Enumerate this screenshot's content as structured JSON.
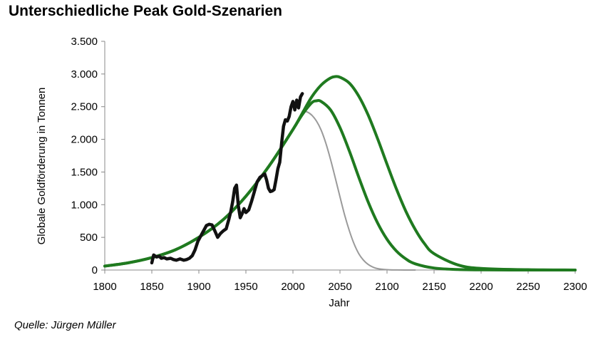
{
  "title": "Unterschiedliche Peak Gold-Szenarien",
  "source": "Quelle: Jürgen Müller",
  "chart_data": {
    "type": "line",
    "title": "Unterschiedliche Peak Gold-Szenarien",
    "xlabel": "Jahr",
    "ylabel": "Globale Goldförderung in Tonnen",
    "xlim": [
      1800,
      2300
    ],
    "ylim": [
      0,
      3500
    ],
    "x_ticks": [
      1800,
      1850,
      1900,
      1950,
      2000,
      2050,
      2100,
      2150,
      2200,
      2250,
      2300
    ],
    "x_tick_labels": [
      "1800",
      "1850",
      "1900",
      "1950",
      "2000",
      "2050",
      "2100",
      "2150",
      "2200",
      "2250",
      "2300"
    ],
    "y_ticks": [
      0,
      500,
      1000,
      1500,
      2000,
      2500,
      3000,
      3500
    ],
    "y_tick_labels": [
      "0",
      "500",
      "1.000",
      "1.500",
      "2.000",
      "2.500",
      "3.000",
      "3.500"
    ],
    "grid": false,
    "legend": "none",
    "series": [
      {
        "color": "#1f7a1f",
        "style": "thick",
        "x": [
          1800,
          1825,
          1850,
          1875,
          1900,
          1925,
          1950,
          1975,
          2000,
          2010,
          2020,
          2030,
          2040,
          2045,
          2050,
          2060,
          2070,
          2080,
          2090,
          2100,
          2110,
          2120,
          2130,
          2140,
          2150,
          2175,
          2200,
          2250,
          2300
        ],
        "y": [
          60,
          110,
          190,
          310,
          500,
          760,
          1130,
          1600,
          2150,
          2400,
          2650,
          2830,
          2940,
          2960,
          2950,
          2860,
          2660,
          2370,
          2010,
          1620,
          1240,
          900,
          620,
          400,
          250,
          80,
          25,
          5,
          0
        ]
      },
      {
        "color": "#1f7a1f",
        "style": "thick",
        "x": [
          1800,
          1825,
          1850,
          1875,
          1900,
          1925,
          1950,
          1975,
          2000,
          2010,
          2020,
          2025,
          2030,
          2040,
          2050,
          2060,
          2070,
          2080,
          2090,
          2100,
          2110,
          2120,
          2130,
          2150,
          2175,
          2200,
          2250,
          2300
        ],
        "y": [
          60,
          110,
          190,
          310,
          500,
          760,
          1130,
          1600,
          2150,
          2380,
          2560,
          2590,
          2580,
          2450,
          2180,
          1820,
          1420,
          1040,
          720,
          470,
          290,
          170,
          95,
          30,
          8,
          2,
          0,
          0
        ]
      },
      {
        "color": "#9a9a9a",
        "style": "thin",
        "x": [
          2010,
          2015,
          2020,
          2025,
          2030,
          2035,
          2040,
          2045,
          2050,
          2055,
          2060,
          2065,
          2070,
          2075,
          2080,
          2085,
          2090,
          2100,
          2110,
          2130
        ],
        "y": [
          2430,
          2420,
          2370,
          2280,
          2140,
          1940,
          1690,
          1410,
          1120,
          840,
          600,
          400,
          250,
          150,
          85,
          45,
          22,
          5,
          1,
          0
        ]
      },
      {
        "color": "#111111",
        "style": "historical",
        "x": [
          1850,
          1852,
          1855,
          1858,
          1860,
          1863,
          1866,
          1870,
          1873,
          1876,
          1880,
          1884,
          1887,
          1890,
          1893,
          1896,
          1899,
          1902,
          1905,
          1908,
          1911,
          1914,
          1917,
          1920,
          1923,
          1926,
          1929,
          1932,
          1934,
          1936,
          1938,
          1940,
          1942,
          1944,
          1946,
          1948,
          1950,
          1953,
          1956,
          1959,
          1962,
          1965,
          1968,
          1970,
          1972,
          1974,
          1976,
          1978,
          1980,
          1982,
          1984,
          1986,
          1988,
          1990,
          1992,
          1994,
          1996,
          1998,
          2000,
          2002,
          2004,
          2006,
          2008,
          2010
        ],
        "y": [
          110,
          230,
          200,
          210,
          180,
          190,
          170,
          180,
          160,
          150,
          170,
          150,
          160,
          180,
          220,
          310,
          440,
          520,
          600,
          680,
          700,
          690,
          600,
          500,
          560,
          600,
          630,
          780,
          900,
          1050,
          1250,
          1300,
          980,
          800,
          860,
          940,
          880,
          920,
          1050,
          1200,
          1350,
          1420,
          1450,
          1470,
          1380,
          1250,
          1200,
          1210,
          1230,
          1380,
          1550,
          1650,
          1950,
          2200,
          2300,
          2280,
          2350,
          2500,
          2580,
          2450,
          2600,
          2480,
          2650,
          2700
        ]
      }
    ]
  }
}
